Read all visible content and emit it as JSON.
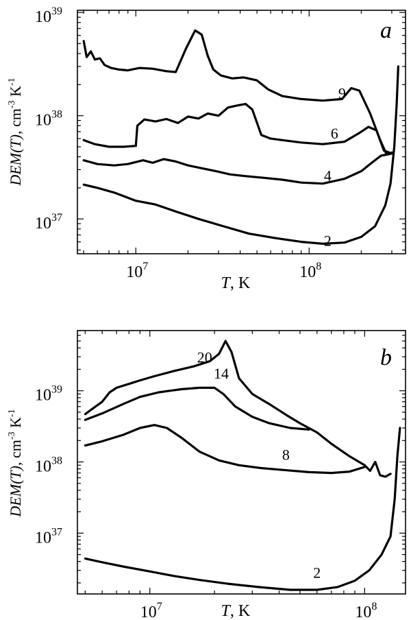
{
  "chart_data": [
    {
      "type": "line",
      "panel_label": "a",
      "xscale": "log",
      "yscale": "log",
      "xlim": [
        4600000.0,
        360000000.0
      ],
      "ylim": [
        4.6e+36,
        1.05e+39
      ],
      "xlabel_italic": "T",
      "xlabel_rest": ", K",
      "ylabel_italic": "DEM(T)",
      "ylabel_rest": ", cm",
      "ylabel_exp1": "-3",
      "ylabel_unit": " K",
      "ylabel_exp2": "-1",
      "xticks": [
        {
          "value": 10000000.0,
          "base": "10",
          "exp": "7"
        },
        {
          "value": 100000000.0,
          "base": "10",
          "exp": "8"
        }
      ],
      "yticks": [
        {
          "value": 1e+37,
          "base": "10",
          "exp": "37"
        },
        {
          "value": 1e+38,
          "base": "10",
          "exp": "38"
        },
        {
          "value": 1e+39,
          "base": "10",
          "exp": "39"
        }
      ],
      "series": [
        {
          "name": "9",
          "label_at": [
            155000000.0,
            1.47e+38
          ],
          "points": [
            [
              5000000.0,
              5.3e+38
            ],
            [
              5200000.0,
              3.7e+38
            ],
            [
              5500000.0,
              4.2e+38
            ],
            [
              5800000.0,
              3.5e+38
            ],
            [
              6200000.0,
              3.6e+38
            ],
            [
              6600000.0,
              3.1e+38
            ],
            [
              7200000.0,
              2.9e+38
            ],
            [
              8000000.0,
              2.8e+38
            ],
            [
              9000000.0,
              2.75e+38
            ],
            [
              10500000.0,
              2.9e+38
            ],
            [
              12500000.0,
              2.85e+38
            ],
            [
              15000000.0,
              2.7e+38
            ],
            [
              17000000.0,
              2.65e+38
            ],
            [
              19500000.0,
              4.5e+38
            ],
            [
              22000000.0,
              6.7e+38
            ],
            [
              24000000.0,
              6.1e+38
            ],
            [
              26000000.0,
              3.8e+38
            ],
            [
              28000000.0,
              2.8e+38
            ],
            [
              31000000.0,
              2.45e+38
            ],
            [
              36000000.0,
              2.3e+38
            ],
            [
              42000000.0,
              2.35e+38
            ],
            [
              50000000.0,
              2.2e+38
            ],
            [
              58000000.0,
              1.8e+38
            ],
            [
              70000000.0,
              1.55e+38
            ],
            [
              90000000.0,
              1.45e+38
            ],
            [
              120000000.0,
              1.4e+38
            ],
            [
              155000000.0,
              1.45e+38
            ],
            [
              175000000.0,
              1.85e+38
            ],
            [
              195000000.0,
              1.75e+38
            ],
            [
              225000000.0,
              1.05e+38
            ],
            [
              255000000.0,
              6e+37
            ],
            [
              280000000.0,
              4.2e+37
            ],
            [
              300000000.0,
              4.4e+37
            ]
          ]
        },
        {
          "name": "6",
          "label_at": [
            140000000.0,
            6e+37
          ],
          "points": [
            [
              5000000.0,
              5.8e+37
            ],
            [
              5800000.0,
              5.3e+37
            ],
            [
              7000000.0,
              5e+37
            ],
            [
              8500000.0,
              5e+37
            ],
            [
              10000000.0,
              5.1e+37
            ],
            [
              10200000.0,
              8e+37
            ],
            [
              11200000.0,
              9.2e+37
            ],
            [
              13000000.0,
              8.8e+37
            ],
            [
              15000000.0,
              9.3e+37
            ],
            [
              17500000.0,
              8.5e+37
            ],
            [
              20000000.0,
              9.8e+37
            ],
            [
              23000000.0,
              9.4e+37
            ],
            [
              26000000.0,
              1.05e+38
            ],
            [
              30000000.0,
              1e+38
            ],
            [
              34000000.0,
              1.2e+38
            ],
            [
              38000000.0,
              1.25e+38
            ],
            [
              43000000.0,
              1.3e+38
            ],
            [
              47000000.0,
              1.15e+38
            ],
            [
              53000000.0,
              6.5e+37
            ],
            [
              60000000.0,
              6e+37
            ],
            [
              70000000.0,
              5.8e+37
            ],
            [
              90000000.0,
              5.5e+37
            ],
            [
              120000000.0,
              5.3e+37
            ],
            [
              160000000.0,
              5.6e+37
            ],
            [
              195000000.0,
              6.8e+37
            ],
            [
              220000000.0,
              7.8e+37
            ],
            [
              245000000.0,
              7.2e+37
            ],
            [
              270000000.0,
              4.6e+37
            ],
            [
              300000000.0,
              4.3e+37
            ]
          ]
        },
        {
          "name": "4",
          "label_at": [
            128000000.0,
            2.35e+37
          ],
          "points": [
            [
              5000000.0,
              3.7e+37
            ],
            [
              6000000.0,
              3.4e+37
            ],
            [
              7500000.0,
              3.3e+37
            ],
            [
              9000000.0,
              3.4e+37
            ],
            [
              11000000.0,
              3.7e+37
            ],
            [
              12500000.0,
              3.5e+37
            ],
            [
              14500000.0,
              3.8e+37
            ],
            [
              17000000.0,
              3.6e+37
            ],
            [
              20000000.0,
              3.3e+37
            ],
            [
              24000000.0,
              3.1e+37
            ],
            [
              29000000.0,
              2.9e+37
            ],
            [
              35000000.0,
              2.7e+37
            ],
            [
              43000000.0,
              2.6e+37
            ],
            [
              55000000.0,
              2.5e+37
            ],
            [
              70000000.0,
              2.4e+37
            ],
            [
              90000000.0,
              2.25e+37
            ],
            [
              120000000.0,
              2.2e+37
            ],
            [
              160000000.0,
              2.45e+37
            ],
            [
              200000000.0,
              2.9e+37
            ],
            [
              230000000.0,
              3.5e+37
            ],
            [
              260000000.0,
              4.1e+37
            ],
            [
              300000000.0,
              4.3e+37
            ]
          ]
        },
        {
          "name": "2",
          "label_at": [
            128000000.0,
            5.5e+36
          ],
          "points": [
            [
              5000000.0,
              2.15e+37
            ],
            [
              6000000.0,
              2e+37
            ],
            [
              7500000.0,
              1.8e+37
            ],
            [
              10000000.0,
              1.5e+37
            ],
            [
              13000000.0,
              1.38e+37
            ],
            [
              17000000.0,
              1.18e+37
            ],
            [
              23000000.0,
              1e+37
            ],
            [
              32000000.0,
              8.5e+36
            ],
            [
              45000000.0,
              7.2e+36
            ],
            [
              65000000.0,
              6.5e+36
            ],
            [
              90000000.0,
              6e+36
            ],
            [
              120000000.0,
              5.75e+36
            ],
            [
              160000000.0,
              5.9e+36
            ],
            [
              200000000.0,
              6.7e+36
            ],
            [
              240000000.0,
              8.5e+36
            ],
            [
              275000000.0,
              1.35e+37
            ],
            [
              295000000.0,
              2.2e+37
            ],
            [
              310000000.0,
              5e+37
            ],
            [
              320000000.0,
              1.3e+38
            ],
            [
              327000000.0,
              3e+38
            ]
          ]
        }
      ]
    },
    {
      "type": "line",
      "panel_label": "b",
      "xscale": "log",
      "yscale": "log",
      "xlim": [
        4600000.0,
        155000000.0
      ],
      "ylim": [
        1.4e+36,
        7e+39
      ],
      "xlabel_italic": "T",
      "xlabel_rest": ", K",
      "ylabel_italic": "DEM(T)",
      "ylabel_rest": ", cm",
      "ylabel_exp1": "-3",
      "ylabel_unit": " K",
      "ylabel_exp2": "-1",
      "xticks": [
        {
          "value": 10000000.0,
          "base": "10",
          "exp": "7"
        },
        {
          "value": 100000000.0,
          "base": "10",
          "exp": "8"
        }
      ],
      "yticks": [
        {
          "value": 1e+37,
          "base": "10",
          "exp": "37"
        },
        {
          "value": 1e+38,
          "base": "10",
          "exp": "38"
        },
        {
          "value": 1e+39,
          "base": "10",
          "exp": "39"
        }
      ],
      "series": [
        {
          "name": "20",
          "label_at": [
            18000000.0,
            2.5e+39
          ],
          "points": [
            [
              5000000.0,
              4.7e+38
            ],
            [
              5500000.0,
              5.8e+38
            ],
            [
              6000000.0,
              7e+38
            ],
            [
              6500000.0,
              9.5e+38
            ],
            [
              7000000.0,
              1.1e+39
            ],
            [
              8000000.0,
              1.25e+39
            ],
            [
              9000000.0,
              1.4e+39
            ],
            [
              10500000.0,
              1.6e+39
            ],
            [
              13000000.0,
              1.9e+39
            ],
            [
              16000000.0,
              2.2e+39
            ],
            [
              19000000.0,
              2.6e+39
            ],
            [
              21000000.0,
              3.3e+39
            ],
            [
              22500000.0,
              5e+39
            ],
            [
              24000000.0,
              3.5e+39
            ],
            [
              26000000.0,
              1.5e+39
            ],
            [
              30000000.0,
              9e+38
            ],
            [
              36000000.0,
              6.5e+38
            ],
            [
              43000000.0,
              4.6e+38
            ],
            [
              50000000.0,
              3.5e+38
            ],
            [
              60000000.0,
              2.6e+38
            ],
            [
              70000000.0,
              1.8e+38
            ],
            [
              85000000.0,
              1.2e+38
            ],
            [
              100000000.0,
              9e+37
            ],
            [
              106000000.0,
              7.5e+37
            ],
            [
              112000000.0,
              1e+38
            ],
            [
              118000000.0,
              6.5e+37
            ],
            [
              125000000.0,
              6.2e+37
            ],
            [
              132000000.0,
              6.8e+37
            ]
          ]
        },
        {
          "name": "14",
          "label_at": [
            21500000.0,
            1.48e+39
          ],
          "points": [
            [
              5000000.0,
              3.9e+38
            ],
            [
              6000000.0,
              4.8e+38
            ],
            [
              7500000.0,
              6.5e+38
            ],
            [
              9000000.0,
              8.2e+38
            ],
            [
              11000000.0,
              9.5e+38
            ],
            [
              14000000.0,
              1.05e+39
            ],
            [
              17000000.0,
              1.1e+39
            ],
            [
              20000000.0,
              1.1e+39
            ],
            [
              22000000.0,
              9e+38
            ],
            [
              25000000.0,
              6e+38
            ],
            [
              30000000.0,
              4.3e+38
            ],
            [
              36000000.0,
              3.5e+38
            ],
            [
              45000000.0,
              3e+38
            ],
            [
              55000000.0,
              2.85e+38
            ]
          ]
        },
        {
          "name": "8",
          "label_at": [
            43000000.0,
            1.07e+38
          ],
          "points": [
            [
              5000000.0,
              1.7e+38
            ],
            [
              6000000.0,
              1.95e+38
            ],
            [
              7500000.0,
              2.4e+38
            ],
            [
              9000000.0,
              3e+38
            ],
            [
              10500000.0,
              3.3e+38
            ],
            [
              12000000.0,
              3e+38
            ],
            [
              14000000.0,
              2.2e+38
            ],
            [
              17000000.0,
              1.4e+38
            ],
            [
              21000000.0,
              1.05e+38
            ],
            [
              26000000.0,
              9e+37
            ],
            [
              33000000.0,
              8.2e+37
            ],
            [
              42000000.0,
              7.7e+37
            ],
            [
              55000000.0,
              7.2e+37
            ],
            [
              70000000.0,
              7e+37
            ],
            [
              85000000.0,
              7.3e+37
            ],
            [
              100000000.0,
              8.5e+37
            ]
          ]
        },
        {
          "name": "2",
          "label_at": [
            60000000.0,
            2.35e+36
          ],
          "points": [
            [
              5000000.0,
              4.4e+36
            ],
            [
              6000000.0,
              3.9e+36
            ],
            [
              7500000.0,
              3.4e+36
            ],
            [
              10000000.0,
              2.9e+36
            ],
            [
              13000000.0,
              2.5e+36
            ],
            [
              17000000.0,
              2.2e+36
            ],
            [
              23000000.0,
              1.95e+36
            ],
            [
              32000000.0,
              1.75e+36
            ],
            [
              45000000.0,
              1.6e+36
            ],
            [
              60000000.0,
              1.6e+36
            ],
            [
              75000000.0,
              1.75e+36
            ],
            [
              90000000.0,
              2.15e+36
            ],
            [
              105000000.0,
              3e+36
            ],
            [
              120000000.0,
              5e+36
            ],
            [
              132000000.0,
              9e+36
            ],
            [
              138000000.0,
              3e+37
            ],
            [
              142000000.0,
              1.2e+38
            ],
            [
              146000000.0,
              3e+38
            ]
          ]
        }
      ]
    }
  ]
}
